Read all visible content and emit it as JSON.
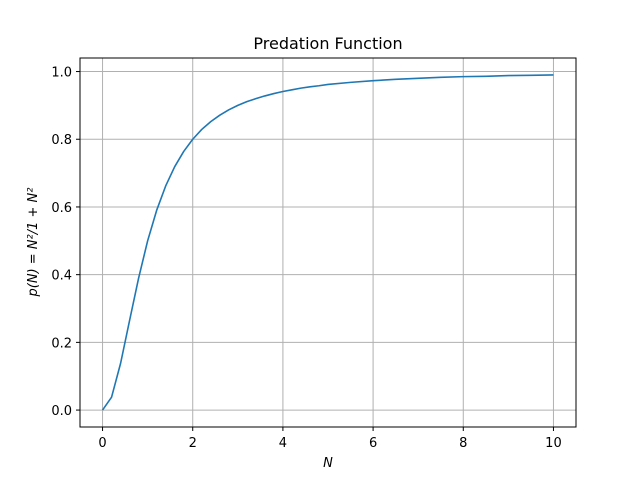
{
  "chart_data": {
    "type": "line",
    "title": "Predation Function",
    "xlabel": "N",
    "ylabel": "p(N) = N²/1 + N²",
    "xlim": [
      -0.5,
      10.5
    ],
    "ylim": [
      -0.05,
      1.04
    ],
    "xticks": [
      0,
      2,
      4,
      6,
      8,
      10
    ],
    "yticks": [
      0.0,
      0.2,
      0.4,
      0.6,
      0.8,
      1.0
    ],
    "xtick_labels": [
      "0",
      "2",
      "4",
      "6",
      "8",
      "10"
    ],
    "ytick_labels": [
      "0.0",
      "0.2",
      "0.4",
      "0.6",
      "0.8",
      "1.0"
    ],
    "grid": true,
    "line_color": "#1f77b4",
    "series": [
      {
        "x": [
          0.0,
          0.2,
          0.4,
          0.6,
          0.8,
          1.0,
          1.2,
          1.4,
          1.6,
          1.8,
          2.0,
          2.2,
          2.4,
          2.6,
          2.8,
          3.0,
          3.2,
          3.4,
          3.6,
          3.8,
          4.0,
          4.2,
          4.4,
          4.6,
          4.8,
          5.0,
          5.5,
          6.0,
          6.5,
          7.0,
          7.5,
          8.0,
          8.5,
          9.0,
          9.5,
          10.0
        ],
        "values": [
          0.0,
          0.038,
          0.138,
          0.265,
          0.39,
          0.5,
          0.59,
          0.662,
          0.719,
          0.764,
          0.8,
          0.829,
          0.852,
          0.871,
          0.887,
          0.9,
          0.911,
          0.92,
          0.928,
          0.935,
          0.941,
          0.946,
          0.951,
          0.955,
          0.958,
          0.962,
          0.968,
          0.973,
          0.977,
          0.98,
          0.983,
          0.985,
          0.986,
          0.988,
          0.989,
          0.99
        ]
      }
    ]
  }
}
